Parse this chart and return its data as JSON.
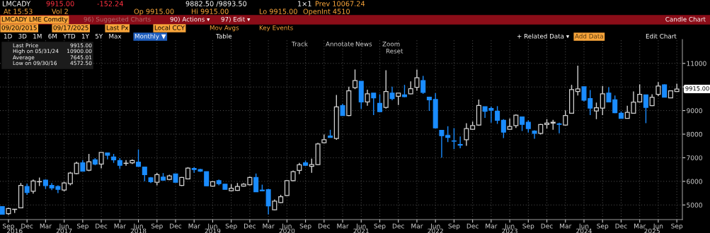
{
  "chart_data": {
    "type": "candlestick",
    "x": [
      "2016-08",
      "2016-09",
      "2016-10",
      "2016-11",
      "2016-12",
      "2017-01",
      "2017-02",
      "2017-03",
      "2017-04",
      "2017-05",
      "2017-06",
      "2017-07",
      "2017-08",
      "2017-09",
      "2017-10",
      "2017-11",
      "2017-12",
      "2018-01",
      "2018-02",
      "2018-03",
      "2018-04",
      "2018-05",
      "2018-06",
      "2018-07",
      "2018-08",
      "2018-09",
      "2018-10",
      "2018-11",
      "2018-12",
      "2019-01",
      "2019-02",
      "2019-03",
      "2019-04",
      "2019-05",
      "2019-06",
      "2019-07",
      "2019-08",
      "2019-09",
      "2019-10",
      "2019-11",
      "2019-12",
      "2020-01",
      "2020-02",
      "2020-03",
      "2020-04",
      "2020-05",
      "2020-06",
      "2020-07",
      "2020-08",
      "2020-09",
      "2020-10",
      "2020-11",
      "2020-12",
      "2021-01",
      "2021-02",
      "2021-03",
      "2021-04",
      "2021-05",
      "2021-06",
      "2021-07",
      "2021-08",
      "2021-09",
      "2021-10",
      "2021-11",
      "2021-12",
      "2022-01",
      "2022-02",
      "2022-03",
      "2022-04",
      "2022-05",
      "2022-06",
      "2022-07",
      "2022-08",
      "2022-09",
      "2022-10",
      "2022-11",
      "2022-12",
      "2023-01",
      "2023-02",
      "2023-03",
      "2023-04",
      "2023-05",
      "2023-06",
      "2023-07",
      "2023-08",
      "2023-09",
      "2023-10",
      "2023-11",
      "2023-12",
      "2024-01",
      "2024-02",
      "2024-03",
      "2024-04",
      "2024-05",
      "2024-06",
      "2024-07",
      "2024-08",
      "2024-09",
      "2024-10",
      "2024-11",
      "2024-12",
      "2025-01",
      "2025-02",
      "2025-03",
      "2025-04",
      "2025-05",
      "2025-06",
      "2025-07",
      "2025-08",
      "2025-09"
    ],
    "ohlc": [
      [
        4929,
        4929,
        4608,
        4608
      ],
      [
        4628,
        4879,
        4572.5,
        4849
      ],
      [
        4810,
        4820,
        4660,
        4820
      ],
      [
        4879,
        5931,
        4879,
        5831
      ],
      [
        5781,
        5901,
        5430,
        5530
      ],
      [
        5580,
        6081,
        5480,
        6011
      ],
      [
        5981,
        6161,
        5801,
        5991
      ],
      [
        6051,
        6081,
        5681,
        5821
      ],
      [
        5831,
        5931,
        5630,
        5721
      ],
      [
        5781,
        5831,
        5500,
        5660
      ],
      [
        5630,
        5981,
        5580,
        5931
      ],
      [
        5901,
        6402,
        5831,
        6352
      ],
      [
        6332,
        6833,
        6302,
        6773
      ],
      [
        6783,
        6903,
        6432,
        6432
      ],
      [
        6472,
        7163,
        6432,
        6833
      ],
      [
        6913,
        6983,
        6682,
        6733
      ],
      [
        6733,
        7223,
        6552,
        7223
      ],
      [
        7203,
        7203,
        6933,
        7103
      ],
      [
        7033,
        7163,
        6783,
        6913
      ],
      [
        6883,
        6983,
        6532,
        6682
      ],
      [
        6760,
        6903,
        6662,
        6770
      ],
      [
        6783,
        6933,
        6733,
        6883
      ],
      [
        6813,
        7353,
        6633,
        6633
      ],
      [
        6602,
        6602,
        6001,
        6282
      ],
      [
        6152,
        6182,
        5931,
        5981
      ],
      [
        5961,
        6352,
        5831,
        6282
      ],
      [
        6182,
        6352,
        6031,
        6051
      ],
      [
        6081,
        6282,
        6051,
        6232
      ],
      [
        6312,
        6312,
        5961,
        5961
      ],
      [
        5831,
        6182,
        5801,
        6162
      ],
      [
        6102,
        6602,
        6081,
        6562
      ],
      [
        6542,
        6602,
        6362,
        6502
      ],
      [
        6502,
        6532,
        6402,
        6432
      ],
      [
        6412,
        6412,
        5811,
        5811
      ],
      [
        5801,
        6001,
        5781,
        5981
      ],
      [
        6031,
        6081,
        5831,
        5901
      ],
      [
        5881,
        5881,
        5660,
        5660
      ],
      [
        5600,
        5881,
        5580,
        5710
      ],
      [
        5620,
        5931,
        5600,
        5781
      ],
      [
        5801,
        5931,
        5781,
        5881
      ],
      [
        5861,
        6202,
        5831,
        6162
      ],
      [
        6162,
        6332,
        5560,
        5560
      ],
      [
        5630,
        5861,
        5580,
        5600
      ],
      [
        5650,
        5680,
        4598,
        4959
      ],
      [
        4798,
        5230,
        4779,
        5160
      ],
      [
        5100,
        5430,
        5080,
        5350
      ],
      [
        5400,
        6061,
        5380,
        6031
      ],
      [
        6031,
        6462,
        6001,
        6412
      ],
      [
        6462,
        6783,
        6312,
        6703
      ],
      [
        6783,
        6883,
        6652,
        6682
      ],
      [
        6632,
        6963,
        6362,
        6712
      ],
      [
        6712,
        7634,
        6682,
        7584
      ],
      [
        7634,
        7985,
        7604,
        7764
      ],
      [
        7925,
        8185,
        7865,
        7865
      ],
      [
        7814,
        9658,
        7764,
        9157
      ],
      [
        9207,
        9288,
        8787,
        8787
      ],
      [
        8787,
        10009,
        8767,
        9839
      ],
      [
        9969,
        10741,
        9909,
        10270
      ],
      [
        10240,
        10240,
        9067,
        9368
      ],
      [
        9368,
        9889,
        9207,
        9709
      ],
      [
        9739,
        9739,
        8807,
        9538
      ],
      [
        9308,
        9688,
        8957,
        8957
      ],
      [
        9137,
        10710,
        9087,
        9809
      ],
      [
        9739,
        10009,
        9438,
        9508
      ],
      [
        9608,
        9739,
        9237,
        9739
      ],
      [
        9668,
        10089,
        9568,
        9588
      ],
      [
        9709,
        10240,
        9688,
        9929
      ],
      [
        9989,
        10741,
        9839,
        10390
      ],
      [
        10270,
        10470,
        9708,
        9769
      ],
      [
        9568,
        9588,
        8987,
        9458
      ],
      [
        9468,
        9738,
        8266,
        8266
      ],
      [
        8165,
        8165,
        7003,
        7935
      ],
      [
        7945,
        8336,
        7664,
        7865
      ],
      [
        7714,
        8256,
        7364,
        7704
      ],
      [
        7564,
        7905,
        7404,
        7534
      ],
      [
        7764,
        8466,
        7504,
        8236
      ],
      [
        8205,
        8536,
        8185,
        8366
      ],
      [
        8386,
        9468,
        8356,
        9217
      ],
      [
        9167,
        9167,
        8687,
        8967
      ],
      [
        9087,
        9167,
        8486,
        9017
      ],
      [
        8967,
        9187,
        8436,
        8586
      ],
      [
        8586,
        8636,
        7835,
        8085
      ],
      [
        8206,
        8666,
        8186,
        8326
      ],
      [
        8366,
        8837,
        8266,
        8807
      ],
      [
        8727,
        8727,
        8135,
        8416
      ],
      [
        8506,
        8586,
        8065,
        8236
      ],
      [
        8135,
        8166,
        7805,
        8035
      ],
      [
        8035,
        8436,
        7985,
        8406
      ],
      [
        8406,
        8636,
        8236,
        8466
      ],
      [
        8466,
        8606,
        8186,
        8506
      ],
      [
        8436,
        8486,
        8035,
        8416
      ],
      [
        8386,
        9007,
        8366,
        8787
      ],
      [
        8887,
        10089,
        8867,
        9889
      ],
      [
        9809,
        10900,
        9638,
        9919
      ],
      [
        10009,
        10009,
        9388,
        9438
      ],
      [
        9508,
        9869,
        8807,
        9107
      ],
      [
        8987,
        9338,
        8636,
        9117
      ],
      [
        9107,
        10039,
        8807,
        9709
      ],
      [
        9739,
        9989,
        9368,
        9368
      ],
      [
        9458,
        9638,
        8887,
        8907
      ],
      [
        8887,
        8967,
        8667,
        8667
      ],
      [
        8667,
        9207,
        8667,
        8927
      ],
      [
        8887,
        9809,
        8867,
        9358
      ],
      [
        9368,
        10110,
        9338,
        9689
      ],
      [
        9668,
        9668,
        8466,
        9137
      ],
      [
        9207,
        9689,
        9187,
        9558
      ],
      [
        9689,
        10210,
        9608,
        10039
      ],
      [
        10089,
        10110,
        9568,
        9568
      ],
      [
        9538,
        9839,
        9538,
        9839
      ],
      [
        9809,
        10140,
        9809,
        9915
      ]
    ],
    "colors": [
      "#1a8cff",
      "#d0d0d0",
      "#d0d0d0",
      "#d0d0d0",
      "#1a8cff",
      "#d0d0d0",
      "#d0d0d0",
      "#1a8cff",
      "#1a8cff",
      "#1a8cff",
      "#d0d0d0",
      "#d0d0d0",
      "#d0d0d0",
      "#1a8cff",
      "#d0d0d0",
      "#1a8cff",
      "#d0d0d0",
      "#1a8cff",
      "#1a8cff",
      "#1a8cff",
      "#d0d0d0",
      "#d0d0d0",
      "#1a8cff",
      "#1a8cff",
      "#1a8cff",
      "#d0d0d0",
      "#1a8cff",
      "#d0d0d0",
      "#1a8cff",
      "#d0d0d0",
      "#d0d0d0",
      "#1a8cff",
      "#1a8cff",
      "#1a8cff",
      "#d0d0d0",
      "#1a8cff",
      "#1a8cff",
      "#d0d0d0",
      "#d0d0d0",
      "#d0d0d0",
      "#d0d0d0",
      "#1a8cff",
      "#1a8cff",
      "#1a8cff",
      "#d0d0d0",
      "#d0d0d0",
      "#d0d0d0",
      "#d0d0d0",
      "#d0d0d0",
      "#1a8cff",
      "#d0d0d0",
      "#d0d0d0",
      "#d0d0d0",
      "#1a8cff",
      "#d0d0d0",
      "#1a8cff",
      "#d0d0d0",
      "#d0d0d0",
      "#1a8cff",
      "#d0d0d0",
      "#1a8cff",
      "#1a8cff",
      "#d0d0d0",
      "#1a8cff",
      "#d0d0d0",
      "#1a8cff",
      "#d0d0d0",
      "#d0d0d0",
      "#1a8cff",
      "#1a8cff",
      "#1a8cff",
      "#1a8cff",
      "#1a8cff",
      "#1a8cff",
      "#1a8cff",
      "#d0d0d0",
      "#d0d0d0",
      "#d0d0d0",
      "#1a8cff",
      "#1a8cff",
      "#1a8cff",
      "#1a8cff",
      "#d0d0d0",
      "#d0d0d0",
      "#1a8cff",
      "#1a8cff",
      "#1a8cff",
      "#d0d0d0",
      "#d0d0d0",
      "#d0d0d0",
      "#1a8cff",
      "#d0d0d0",
      "#d0d0d0",
      "#d0d0d0",
      "#1a8cff",
      "#1a8cff",
      "#d0d0d0",
      "#d0d0d0",
      "#1a8cff",
      "#1a8cff",
      "#1a8cff",
      "#d0d0d0",
      "#d0d0d0",
      "#d0d0d0",
      "#1a8cff",
      "#d0d0d0",
      "#d0d0d0",
      "#1a8cff",
      "#d0d0d0",
      "#d0d0d0"
    ],
    "xlim": [
      "2016-07-20",
      "2025-09-28"
    ],
    "ylim": [
      4380,
      12010
    ],
    "yticks": [
      5000,
      6000,
      7000,
      8000,
      9000,
      {
        "value": 10000,
        "label": null
      },
      11000
    ],
    "xticks": [
      {
        "value": "2016-09",
        "label": "Sep"
      },
      {
        "value": "2016-12",
        "label": "Dec"
      },
      {
        "value": "2017-03",
        "label": "Mar"
      },
      {
        "value": "2017-06",
        "label": "Jun"
      },
      {
        "value": "2017-09",
        "label": "Sep"
      },
      {
        "value": "2017-12",
        "label": "Dec"
      },
      {
        "value": "2018-03",
        "label": "Mar"
      },
      {
        "value": "2018-06",
        "label": "Jun"
      },
      {
        "value": "2018-09",
        "label": "Sep"
      },
      {
        "value": "2018-12",
        "label": "Dec"
      },
      {
        "value": "2019-03",
        "label": "Mar"
      },
      {
        "value": "2019-06",
        "label": "Jun"
      },
      {
        "value": "2019-09",
        "label": "Sep"
      },
      {
        "value": "2019-12",
        "label": "Dec"
      },
      {
        "value": "2020-03",
        "label": "Mar"
      },
      {
        "value": "2020-06",
        "label": "Jun"
      },
      {
        "value": "2020-09",
        "label": "Sep"
      },
      {
        "value": "2020-12",
        "label": "Dec"
      },
      {
        "value": "2021-03",
        "label": "Mar"
      },
      {
        "value": "2021-06",
        "label": "Jun"
      },
      {
        "value": "2021-09",
        "label": "Sep"
      },
      {
        "value": "2021-12",
        "label": "Dec"
      },
      {
        "value": "2022-03",
        "label": "Mar"
      },
      {
        "value": "2022-06",
        "label": "Jun"
      },
      {
        "value": "2022-09",
        "label": "Sep"
      },
      {
        "value": "2022-12",
        "label": "Dec"
      },
      {
        "value": "2023-03",
        "label": "Mar"
      },
      {
        "value": "2023-06",
        "label": "Jun"
      },
      {
        "value": "2023-09",
        "label": "Sep"
      },
      {
        "value": "2023-12",
        "label": "Dec"
      },
      {
        "value": "2024-03",
        "label": "Mar"
      },
      {
        "value": "2024-06",
        "label": "Jun"
      },
      {
        "value": "2024-09",
        "label": "Sep"
      },
      {
        "value": "2024-12",
        "label": "Dec"
      },
      {
        "value": "2025-03",
        "label": "Mar"
      },
      {
        "value": "2025-06",
        "label": "Jun"
      },
      {
        "value": "2025-09",
        "label": "Sep"
      }
    ],
    "x2lim": [
      "2016-07-20",
      "2025-09-28"
    ],
    "x2ticks": [
      {
        "value": "2016-10",
        "label": "2016"
      },
      {
        "value": "2017-06",
        "label": "2017"
      },
      {
        "value": "2018-06",
        "label": "2018"
      },
      {
        "value": "2019-06",
        "label": "2019"
      },
      {
        "value": "2020-06",
        "label": "2020"
      },
      {
        "value": "2021-06",
        "label": "2021"
      },
      {
        "value": "2022-06",
        "label": "2022"
      },
      {
        "value": "2023-06",
        "label": "2023"
      },
      {
        "value": "2024-06",
        "label": "2024"
      },
      {
        "value": "2025-05",
        "label": "2025"
      }
    ],
    "grid": true,
    "annotations": [
      "LMCADY",
      "9915.00",
      "-152.24",
      "9882.50 /9893.50",
      "1×1",
      "Prev 10067.24",
      "At 15:53",
      "Vol 2",
      "Op 9915.00",
      "Hi 9915.00",
      "Lo 9915.00",
      "OpenInt 4510",
      "LMCADY LME Comdty",
      "96) Suggested Charts",
      "90) Actions ▾",
      "97) Edit ▾",
      "Candle Chart",
      "09/20/2015",
      "09/17/2025",
      "Last Px",
      "Local CCY",
      "Mov Avgs",
      "Key Events",
      "1D   3D   1M   6M   YTD   1Y   5Y   Max",
      "Monthly ▼",
      "Table",
      "+ Related Data ▾",
      "Add Data",
      "Edit Chart",
      "Track",
      "Annotate",
      "News",
      "Zoom",
      "Reset",
      "Last Price",
      "9915.00",
      "High on 05/31/24",
      "10900.00",
      "Average",
      "7645.01",
      "Low on 09/30/16",
      "4572.50",
      {
        "text": "9915.00",
        "x": "2025-09",
        "y": 9915
      }
    ]
  }
}
